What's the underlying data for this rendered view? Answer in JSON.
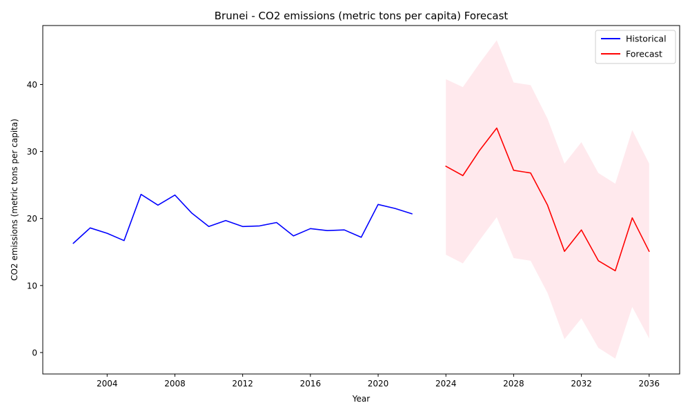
{
  "chart_data": {
    "type": "line",
    "title": "Brunei - CO2 emissions (metric tons per capita) Forecast",
    "xlabel": "Year",
    "ylabel": "CO2 emissions (metric tons per capita)",
    "xlim": [
      2000.2,
      2037.8
    ],
    "ylim": [
      -3.2,
      48.8
    ],
    "xticks": [
      2004,
      2008,
      2012,
      2016,
      2020,
      2024,
      2028,
      2032,
      2036
    ],
    "yticks": [
      0,
      10,
      20,
      30,
      40
    ],
    "grid": false,
    "legend_position": "top-right",
    "series": [
      {
        "name": "Historical",
        "color": "#0000ff",
        "x": [
          2002,
          2003,
          2004,
          2005,
          2006,
          2007,
          2008,
          2009,
          2010,
          2011,
          2012,
          2013,
          2014,
          2015,
          2016,
          2017,
          2018,
          2019,
          2020,
          2021,
          2022
        ],
        "y": [
          16.3,
          18.6,
          17.8,
          16.7,
          23.6,
          22.0,
          23.5,
          20.8,
          18.8,
          19.7,
          18.8,
          18.9,
          19.4,
          17.4,
          18.5,
          18.2,
          18.3,
          17.2,
          22.1,
          21.5,
          20.7
        ]
      },
      {
        "name": "Forecast",
        "color": "#ff0000",
        "x": [
          2024,
          2025,
          2026,
          2027,
          2028,
          2029,
          2030,
          2031,
          2032,
          2033,
          2034,
          2035,
          2036
        ],
        "y": [
          27.8,
          26.4,
          30.2,
          33.5,
          27.2,
          26.8,
          22.0,
          15.1,
          18.3,
          13.7,
          12.2,
          20.1,
          15.1
        ]
      }
    ],
    "confidence_band": {
      "color": "#ffc0cb",
      "x": [
        2024,
        2025,
        2026,
        2027,
        2028,
        2029,
        2030,
        2031,
        2032,
        2033,
        2034,
        2035,
        2036
      ],
      "lower": [
        14.6,
        13.3,
        16.8,
        20.2,
        14.1,
        13.7,
        8.9,
        2.0,
        5.1,
        0.7,
        -0.9,
        6.8,
        2.1
      ],
      "upper": [
        40.8,
        39.6,
        43.2,
        46.6,
        40.3,
        39.9,
        34.9,
        28.2,
        31.4,
        26.8,
        25.2,
        33.2,
        28.2
      ]
    }
  }
}
